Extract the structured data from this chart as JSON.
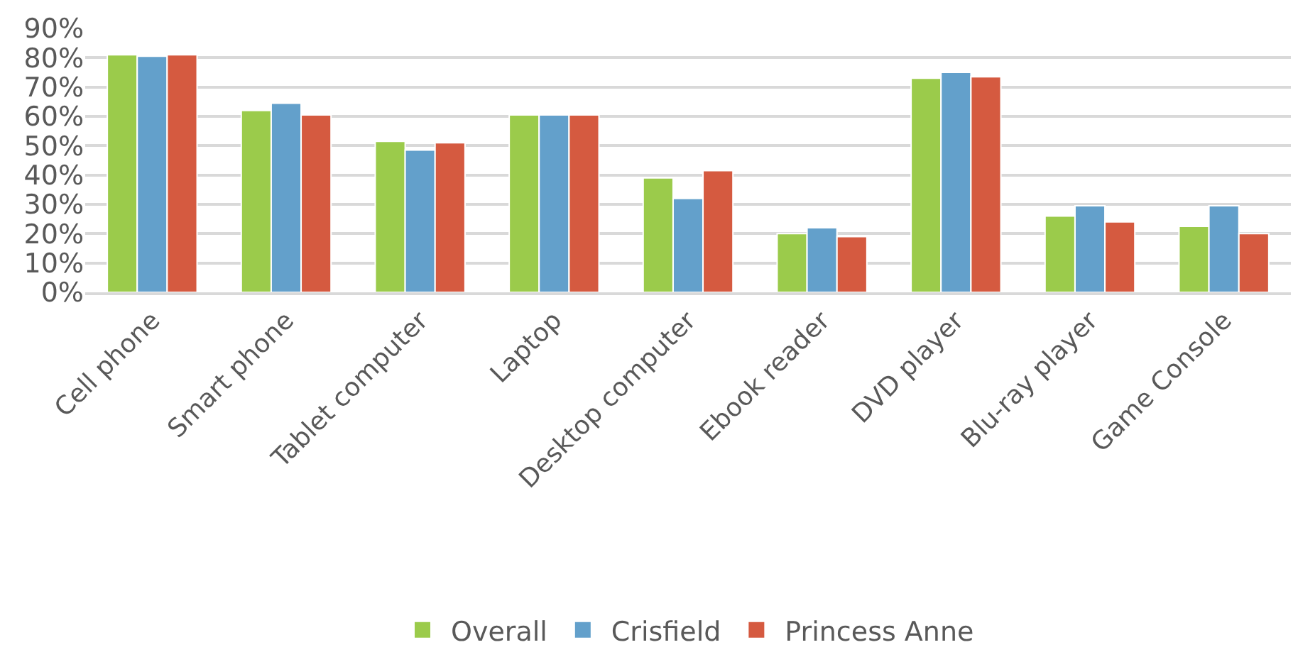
{
  "chart_data": {
    "type": "bar",
    "categories": [
      "Cell phone",
      "Smart phone",
      "Tablet computer",
      "Laptop",
      "Desktop computer",
      "Ebook reader",
      "DVD player",
      "Blu-ray player",
      "Game Console"
    ],
    "series": [
      {
        "name": "Overall",
        "color": "#9bcb4b",
        "values": [
          81,
          62,
          51.5,
          60.5,
          39,
          20,
          73,
          26,
          22.5
        ]
      },
      {
        "name": "Crisfield",
        "color": "#63a0cb",
        "values": [
          80.5,
          64.5,
          48.5,
          60.5,
          32,
          22,
          75,
          29.5,
          29.5
        ]
      },
      {
        "name": "Princess Anne",
        "color": "#d55a40",
        "values": [
          81,
          60.5,
          51,
          60.5,
          41.5,
          19,
          73.5,
          24,
          20
        ]
      }
    ],
    "ylim": [
      0,
      90
    ],
    "yticks": [
      {
        "value": 0,
        "label": "0%"
      },
      {
        "value": 10,
        "label": "10%"
      },
      {
        "value": 20,
        "label": "20%"
      },
      {
        "value": 30,
        "label": "30%"
      },
      {
        "value": 40,
        "label": "40%"
      },
      {
        "value": 50,
        "label": "50%"
      },
      {
        "value": 60,
        "label": "60%"
      },
      {
        "value": 70,
        "label": "70%"
      },
      {
        "value": 80,
        "label": "80%"
      },
      {
        "value": 90,
        "label": "90%"
      }
    ],
    "grid": "y",
    "legend": "bottom"
  }
}
